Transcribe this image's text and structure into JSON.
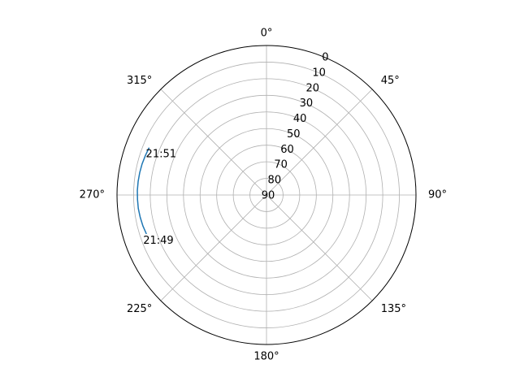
{
  "chart_data": {
    "type": "line",
    "projection": "polar",
    "theta_zero_location": "N",
    "theta_direction": "clockwise",
    "theta_ticks": [
      0,
      45,
      90,
      135,
      180,
      225,
      270,
      315
    ],
    "theta_tick_labels": [
      "0°",
      "45°",
      "90°",
      "135°",
      "180°",
      "225°",
      "270°",
      "315°"
    ],
    "r_ticks": [
      0,
      10,
      20,
      30,
      40,
      50,
      60,
      70,
      80,
      90
    ],
    "r_tick_labels": [
      "0",
      "10",
      "20",
      "30",
      "40",
      "50",
      "60",
      "70",
      "80",
      "90"
    ],
    "r_axis": "elevation",
    "r_range": [
      0,
      90
    ],
    "r_label_angle": 22.5,
    "grid": true,
    "title": "",
    "series": [
      {
        "color": "#1f77b4",
        "points": [
          {
            "azimuth": 252,
            "elevation": 14
          },
          {
            "azimuth": 256,
            "elevation": 13.3
          },
          {
            "azimuth": 260,
            "elevation": 12.8
          },
          {
            "azimuth": 264,
            "elevation": 12.4
          },
          {
            "azimuth": 268,
            "elevation": 12.3
          },
          {
            "azimuth": 272,
            "elevation": 12.2
          },
          {
            "azimuth": 276,
            "elevation": 12.3
          },
          {
            "azimuth": 280,
            "elevation": 12.5
          },
          {
            "azimuth": 284,
            "elevation": 12.8
          },
          {
            "azimuth": 288,
            "elevation": 13.3
          },
          {
            "azimuth": 292,
            "elevation": 13.8
          }
        ]
      }
    ],
    "annotations": [
      {
        "text": "21:51",
        "azimuth": 292,
        "elevation": 13.8
      },
      {
        "text": "21:49",
        "azimuth": 252,
        "elevation": 14
      }
    ]
  }
}
